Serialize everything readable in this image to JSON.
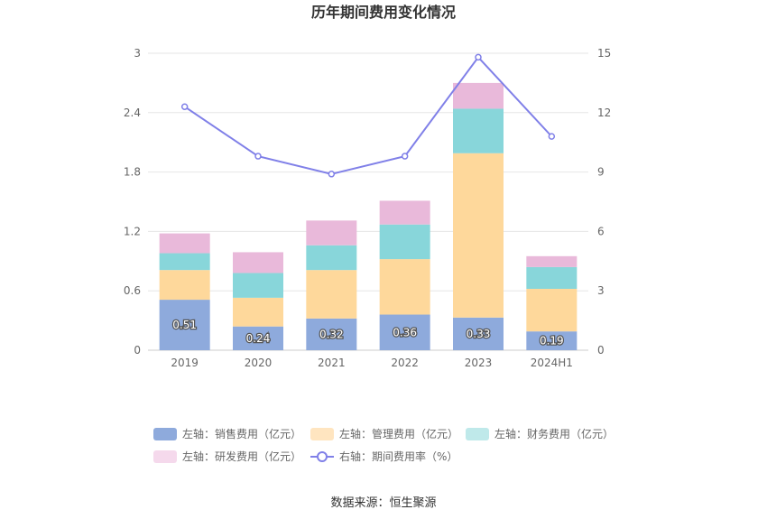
{
  "chart_data": {
    "type": "bar",
    "title": "历年期间费用变化情况",
    "categories": [
      "2019",
      "2020",
      "2021",
      "2022",
      "2023",
      "2024H1"
    ],
    "stacked": true,
    "ylim_left": [
      0,
      3
    ],
    "yticks_left": [
      "0",
      "0.6",
      "1.2",
      "1.8",
      "2.4",
      "3"
    ],
    "ylim_right": [
      0,
      15
    ],
    "yticks_right": [
      "0",
      "3",
      "6",
      "9",
      "12",
      "15"
    ],
    "series": [
      {
        "name": "左轴：销售费用（亿元）",
        "axis": "left",
        "color": "#8eaadc",
        "values": [
          0.51,
          0.24,
          0.32,
          0.36,
          0.33,
          0.19
        ],
        "labels": [
          "0.51",
          "0.24",
          "0.32",
          "0.36",
          "0.33",
          "0.19"
        ]
      },
      {
        "name": "左轴：管理费用（亿元）",
        "axis": "left",
        "color": "#fed89b",
        "values": [
          0.3,
          0.29,
          0.49,
          0.56,
          1.66,
          0.43
        ]
      },
      {
        "name": "左轴：财务费用（亿元）",
        "axis": "left",
        "color": "#88d6da",
        "values": [
          0.17,
          0.25,
          0.25,
          0.35,
          0.45,
          0.22
        ]
      },
      {
        "name": "左轴：研发费用（亿元）",
        "axis": "left",
        "color": "#e9b9da",
        "values": [
          0.2,
          0.21,
          0.25,
          0.24,
          0.26,
          0.11
        ]
      },
      {
        "name": "右轴：期间费用率（%）",
        "axis": "right",
        "type": "line",
        "color": "#8080e8",
        "values": [
          12.3,
          9.8,
          8.9,
          9.8,
          14.8,
          10.8
        ]
      }
    ],
    "grid": true,
    "legend_position": "bottom"
  },
  "legend_colors": [
    "#8eaadc",
    "#ffe5c0",
    "#bfe9ea",
    "#f5d9ec"
  ],
  "source_text": "数据来源：恒生聚源"
}
